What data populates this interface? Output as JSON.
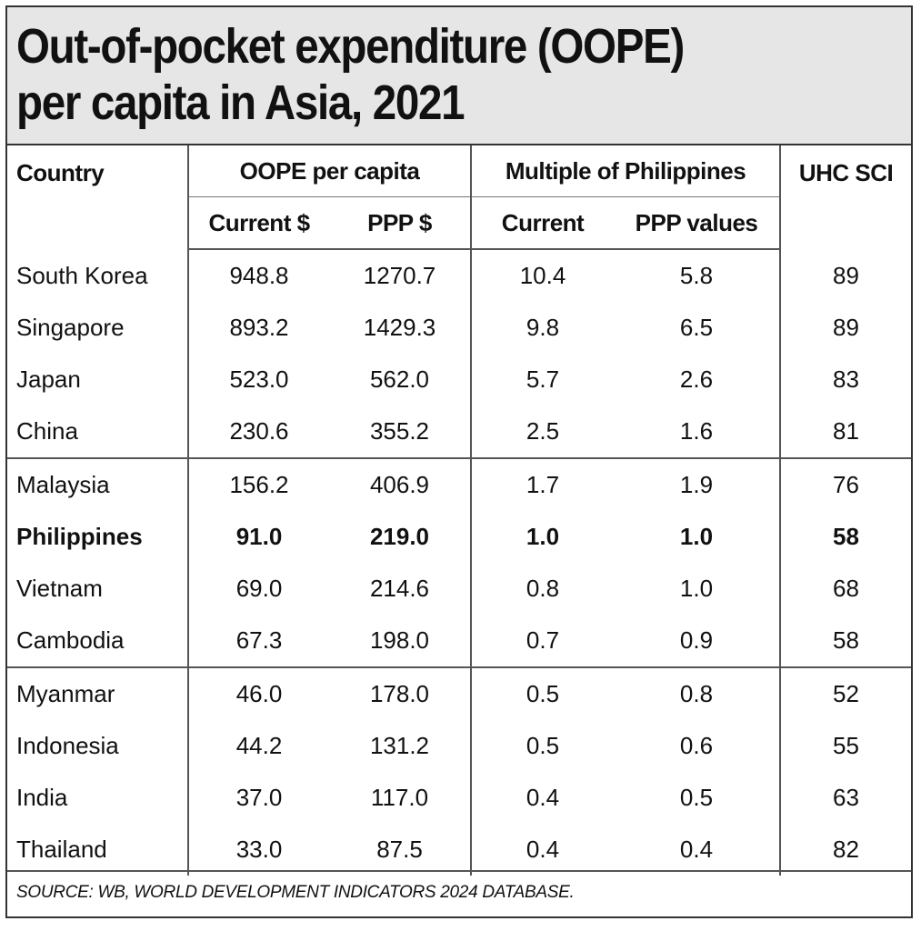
{
  "title": "Out-of-pocket expenditure (OOPE) per capita in Asia, 2021",
  "headers": {
    "country": "Country",
    "oope_group": "OOPE per capita",
    "multiple_group": "Multiple of Philippines",
    "uhc": "UHC SCI",
    "current_usd": "Current $",
    "ppp_usd": "PPP $",
    "current": "Current",
    "ppp_values": "PPP values"
  },
  "rows": [
    {
      "country": "South Korea",
      "current_usd": "948.8",
      "ppp_usd": "1270.7",
      "mult_current": "10.4",
      "mult_ppp": "5.8",
      "uhc": "89"
    },
    {
      "country": "Singapore",
      "current_usd": "893.2",
      "ppp_usd": "1429.3",
      "mult_current": "9.8",
      "mult_ppp": "6.5",
      "uhc": "89"
    },
    {
      "country": "Japan",
      "current_usd": "523.0",
      "ppp_usd": "562.0",
      "mult_current": "5.7",
      "mult_ppp": "2.6",
      "uhc": "83"
    },
    {
      "country": "China",
      "current_usd": "230.6",
      "ppp_usd": "355.2",
      "mult_current": "2.5",
      "mult_ppp": "1.6",
      "uhc": "81"
    },
    {
      "country": "Malaysia",
      "current_usd": "156.2",
      "ppp_usd": "406.9",
      "mult_current": "1.7",
      "mult_ppp": "1.9",
      "uhc": "76"
    },
    {
      "country": "Philippines",
      "current_usd": "91.0",
      "ppp_usd": "219.0",
      "mult_current": "1.0",
      "mult_ppp": "1.0",
      "uhc": "58"
    },
    {
      "country": "Vietnam",
      "current_usd": "69.0",
      "ppp_usd": "214.6",
      "mult_current": "0.8",
      "mult_ppp": "1.0",
      "uhc": "68"
    },
    {
      "country": "Cambodia",
      "current_usd": "67.3",
      "ppp_usd": "198.0",
      "mult_current": "0.7",
      "mult_ppp": "0.9",
      "uhc": "58"
    },
    {
      "country": "Myanmar",
      "current_usd": "46.0",
      "ppp_usd": "178.0",
      "mult_current": "0.5",
      "mult_ppp": "0.8",
      "uhc": "52"
    },
    {
      "country": "Indonesia",
      "current_usd": "44.2",
      "ppp_usd": "131.2",
      "mult_current": "0.5",
      "mult_ppp": "0.6",
      "uhc": "55"
    },
    {
      "country": "India",
      "current_usd": "37.0",
      "ppp_usd": "117.0",
      "mult_current": "0.4",
      "mult_ppp": "0.5",
      "uhc": "63"
    },
    {
      "country": "Thailand",
      "current_usd": "33.0",
      "ppp_usd": "87.5",
      "mult_current": "0.4",
      "mult_ppp": "0.4",
      "uhc": "82"
    }
  ],
  "source": "SOURCE: WB, WORLD DEVELOPMENT INDICATORS 2024 DATABASE.",
  "chart_data": {
    "type": "table",
    "title": "Out-of-pocket expenditure (OOPE) per capita in Asia, 2021",
    "columns": [
      "Country",
      "OOPE per capita Current $",
      "OOPE per capita PPP $",
      "Multiple of Philippines Current",
      "Multiple of Philippines PPP values",
      "UHC SCI"
    ],
    "rows": [
      [
        "South Korea",
        948.8,
        1270.7,
        10.4,
        5.8,
        89
      ],
      [
        "Singapore",
        893.2,
        1429.3,
        9.8,
        6.5,
        89
      ],
      [
        "Japan",
        523.0,
        562.0,
        5.7,
        2.6,
        83
      ],
      [
        "China",
        230.6,
        355.2,
        2.5,
        1.6,
        81
      ],
      [
        "Malaysia",
        156.2,
        406.9,
        1.7,
        1.9,
        76
      ],
      [
        "Philippines",
        91.0,
        219.0,
        1.0,
        1.0,
        58
      ],
      [
        "Vietnam",
        69.0,
        214.6,
        0.8,
        1.0,
        68
      ],
      [
        "Cambodia",
        67.3,
        198.0,
        0.7,
        0.9,
        58
      ],
      [
        "Myanmar",
        46.0,
        178.0,
        0.5,
        0.8,
        52
      ],
      [
        "Indonesia",
        44.2,
        131.2,
        0.5,
        0.6,
        55
      ],
      [
        "India",
        37.0,
        117.0,
        0.4,
        0.5,
        63
      ],
      [
        "Thailand",
        33.0,
        87.5,
        0.4,
        0.4,
        82
      ]
    ],
    "highlight_row": "Philippines"
  }
}
